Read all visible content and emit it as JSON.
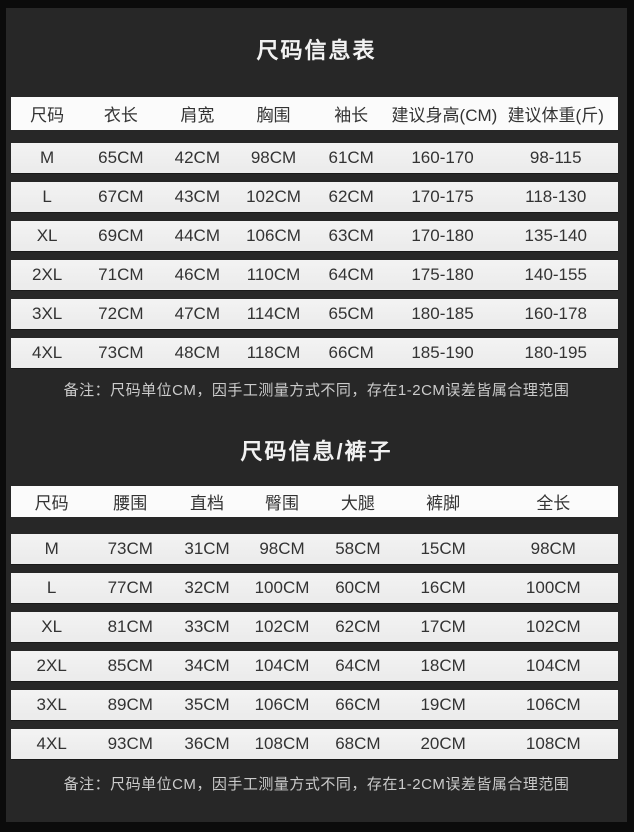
{
  "colors": {
    "page-bg": "#0b0b0b",
    "panel-bg": "#272727",
    "header-strip": "#fbfbfb",
    "row-strip": "#ececec",
    "table-text": "#333333",
    "title-text": "#f2f2f2",
    "note-text": "#cbcbcb"
  },
  "tables": [
    {
      "title": "尺码信息表",
      "columns": [
        "尺码",
        "衣长",
        "肩宽",
        "胸围",
        "袖长",
        "建议身高(CM)",
        "建议体重(斤)"
      ],
      "rows": [
        [
          "M",
          "65CM",
          "42CM",
          "98CM",
          "61CM",
          "160-170",
          "98-115"
        ],
        [
          "L",
          "67CM",
          "43CM",
          "102CM",
          "62CM",
          "170-175",
          "118-130"
        ],
        [
          "XL",
          "69CM",
          "44CM",
          "106CM",
          "63CM",
          "170-180",
          "135-140"
        ],
        [
          "2XL",
          "71CM",
          "46CM",
          "110CM",
          "64CM",
          "175-180",
          "140-155"
        ],
        [
          "3XL",
          "72CM",
          "47CM",
          "114CM",
          "65CM",
          "180-185",
          "160-178"
        ],
        [
          "4XL",
          "73CM",
          "48CM",
          "118CM",
          "66CM",
          "185-190",
          "180-195"
        ]
      ],
      "note": "备注：尺码单位CM，因手工测量方式不同，存在1-2CM误差皆属合理范围"
    },
    {
      "title": "尺码信息/裤子",
      "columns": [
        "尺码",
        "腰围",
        "直档",
        "臀围",
        "大腿",
        "裤脚",
        "全长"
      ],
      "rows": [
        [
          "M",
          "73CM",
          "31CM",
          "98CM",
          "58CM",
          "15CM",
          "98CM"
        ],
        [
          "L",
          "77CM",
          "32CM",
          "100CM",
          "60CM",
          "16CM",
          "100CM"
        ],
        [
          "XL",
          "81CM",
          "33CM",
          "102CM",
          "62CM",
          "17CM",
          "102CM"
        ],
        [
          "2XL",
          "85CM",
          "34CM",
          "104CM",
          "64CM",
          "18CM",
          "104CM"
        ],
        [
          "3XL",
          "89CM",
          "35CM",
          "106CM",
          "66CM",
          "19CM",
          "106CM"
        ],
        [
          "4XL",
          "93CM",
          "36CM",
          "108CM",
          "68CM",
          "20CM",
          "108CM"
        ]
      ],
      "note": "备注：尺码单位CM，因手工测量方式不同，存在1-2CM误差皆属合理范围"
    }
  ]
}
